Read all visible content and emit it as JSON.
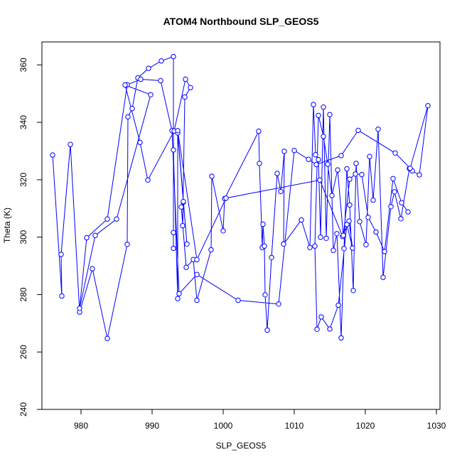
{
  "chart_data": {
    "type": "line",
    "title": "ATOM4 Northbound SLP_GEOS5",
    "xlabel": "SLP_GEOS5",
    "ylabel": "Theta (K)",
    "xlim": [
      974.5,
      1030.5
    ],
    "ylim": [
      240,
      368
    ],
    "xticks": [
      980,
      990,
      1000,
      1010,
      1020,
      1030
    ],
    "yticks": [
      240,
      260,
      280,
      300,
      320,
      340,
      360
    ],
    "grid": false,
    "series_color": "#0000ff",
    "markers": "open-circle",
    "series": [
      {
        "x": [
          976.0,
          977.3,
          977.2,
          978.5,
          979.8,
          981.6,
          983.7,
          986.5,
          986.6,
          987.2,
          988.0,
          989.5,
          991.3,
          993.0,
          993.0,
          993.0,
          993.0,
          993.6,
          993.6,
          994.4,
          994.1,
          994.8,
          995.8,
          996.3,
          998.3,
          998.4,
          1000.0,
          1000.2,
          1005.0,
          1005.1,
          1005.5,
          1005.6,
          1005.8,
          1005.9,
          1006.2,
          1006.8,
          1007.6,
          1008.1,
          1008.6,
          1008.5,
          1011.0,
          1012.2,
          1012.7,
          1013.0,
          1013.4,
          1013.7,
          1014.1,
          1014.5,
          1015.0,
          1015.5,
          1016.0,
          1016.6,
          1017.0,
          1017.4,
          1017.8,
          1018.3,
          1018.7,
          1019.2,
          1020.1,
          1020.6,
          1021.1,
          1021.8,
          1022.5,
          1023.6,
          1024.1,
          1025.0,
          1026.2,
          1026.6,
          1027.6,
          1028.8,
          1026.3,
          1024.2,
          1019.0,
          1016.6,
          1013.1,
          1012.0,
          1010.0,
          1007.8,
          1002.1,
          996.3,
          993.8,
          992.8,
          991.2,
          988.4,
          986.5,
          983.7,
          980.8,
          979.8,
          982.0,
          985.0,
          989.8,
          986.2,
          988.3,
          989.4,
          993.1,
          994.7,
          995.4,
          994.6,
          994.3,
          994.4,
          994.9,
          993.6,
          996.3,
          1000.4,
          1013.6,
          1016.8,
          1017.7,
          1018.2,
          1017.4,
          1016.2,
          1015.0,
          1013.8,
          1013.2,
          1012.9,
          1013.4,
          1014.1,
          1014.7,
          1015.3,
          1016.1,
          1016.9,
          1017.8,
          1018.6,
          1019.5,
          1020.4,
          1021.5,
          1022.7,
          1023.9,
          1025.1,
          1026.0
        ],
        "y": [
          328.6,
          279.5,
          294.0,
          332.3,
          273.9,
          289.0,
          264.7,
          297.5,
          341.9,
          344.8,
          355.5,
          358.8,
          361.4,
          362.9,
          301.6,
          296.1,
          330.4,
          278.6,
          336.3,
          312.2,
          310.5,
          289.5,
          292.2,
          278.0,
          295.6,
          321.2,
          302.2,
          313.4,
          336.9,
          325.7,
          296.4,
          304.5,
          296.9,
          279.9,
          267.6,
          292.9,
          322.2,
          315.9,
          329.9,
          297.6,
          306.0,
          296.4,
          346.2,
          328.7,
          327.0,
          300.0,
          345.3,
          299.6,
          342.7,
          295.4,
          301.2,
          264.9,
          296.0,
          323.8,
          311.2,
          281.4,
          325.7,
          305.4,
          297.4,
          328.1,
          312.9,
          337.6,
          286.0,
          310.6,
          315.8,
          306.4,
          323.9,
          323.1,
          321.7,
          345.8,
          324.0,
          329.3,
          337.2,
          328.4,
          325.3,
          327.1,
          330.2,
          276.7,
          278.0,
          287.0,
          280.3,
          337.1,
          354.5,
          355.0,
          353.1,
          306.3,
          299.8,
          275.2,
          300.6,
          306.3,
          349.6,
          353.0,
          333.0,
          319.9,
          337.0,
          355.0,
          352.1,
          348.8,
          304.0,
          312.4,
          297.6,
          337.1,
          292.2,
          313.6,
          319.9,
          300.2,
          305.6,
          296.2,
          304.4,
          276.3,
          268.0,
          272.2,
          267.9,
          296.9,
          342.4,
          335.1,
          325.4,
          314.5,
          323.4,
          300.6,
          320.2,
          322.0,
          321.8,
          306.9,
          301.8,
          295.0,
          320.4,
          312.0,
          308.8
        ]
      }
    ]
  }
}
